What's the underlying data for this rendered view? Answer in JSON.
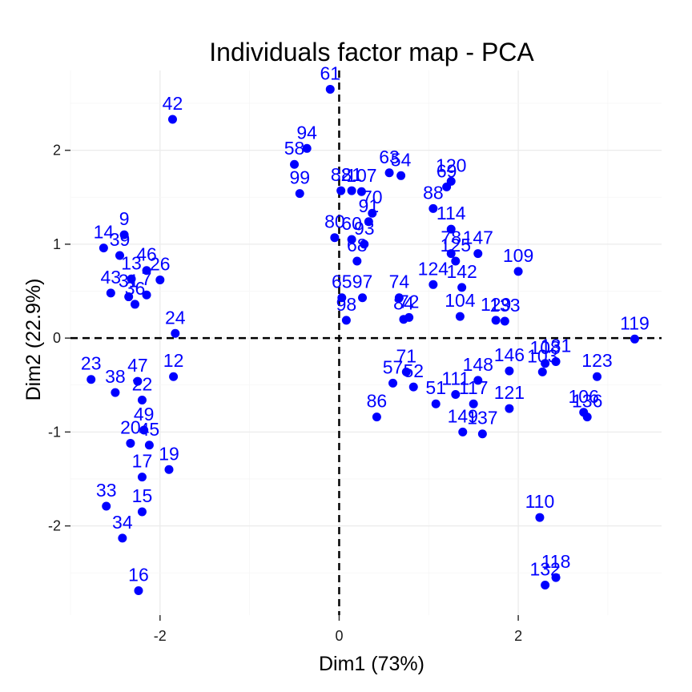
{
  "chart_data": {
    "type": "scatter",
    "title": "Individuals factor map - PCA",
    "xlabel": "Dim1 (73%)",
    "ylabel": "Dim2 (22.9%)",
    "xlim": [
      -3.0,
      3.6
    ],
    "ylim": [
      -2.95,
      2.85
    ],
    "x_ticks": [
      -2,
      0,
      2
    ],
    "x_tick_labels": [
      "-2",
      "0",
      "2"
    ],
    "y_ticks": [
      -2,
      -1,
      0,
      1,
      2
    ],
    "y_tick_labels": [
      "-2",
      "-1",
      "0",
      "1",
      "2"
    ],
    "grid": true,
    "reference_lines": {
      "x": 0,
      "y": 0,
      "style": "dashed"
    },
    "point_color": "#0000ff",
    "label_color": "#0000ff",
    "points": [
      {
        "label": "61",
        "x": -0.1,
        "y": 2.65
      },
      {
        "label": "42",
        "x": -1.86,
        "y": 2.33
      },
      {
        "label": "94",
        "x": -0.36,
        "y": 2.02
      },
      {
        "label": "58",
        "x": -0.5,
        "y": 1.85
      },
      {
        "label": "99",
        "x": -0.44,
        "y": 1.54
      },
      {
        "label": "54",
        "x": 0.69,
        "y": 1.73
      },
      {
        "label": "63",
        "x": 0.56,
        "y": 1.76
      },
      {
        "label": "82",
        "x": 0.02,
        "y": 1.57
      },
      {
        "label": "81",
        "x": 0.14,
        "y": 1.57
      },
      {
        "label": "70",
        "x": 0.37,
        "y": 1.33
      },
      {
        "label": "107",
        "x": 0.25,
        "y": 1.56
      },
      {
        "label": "120",
        "x": 1.25,
        "y": 1.67
      },
      {
        "label": "69",
        "x": 1.2,
        "y": 1.61
      },
      {
        "label": "88",
        "x": 1.05,
        "y": 1.38
      },
      {
        "label": "114",
        "x": 1.25,
        "y": 1.16
      },
      {
        "label": "9",
        "x": -2.4,
        "y": 1.1
      },
      {
        "label": "14",
        "x": -2.63,
        "y": 0.96
      },
      {
        "label": "39",
        "x": -2.45,
        "y": 0.88
      },
      {
        "label": "13",
        "x": -2.32,
        "y": 0.63
      },
      {
        "label": "46",
        "x": -2.15,
        "y": 0.72
      },
      {
        "label": "26",
        "x": -2.0,
        "y": 0.62
      },
      {
        "label": "43",
        "x": -2.55,
        "y": 0.48
      },
      {
        "label": "31",
        "x": -2.35,
        "y": 0.44
      },
      {
        "label": "36",
        "x": -2.28,
        "y": 0.36
      },
      {
        "label": "7",
        "x": -2.15,
        "y": 0.46
      },
      {
        "label": "24",
        "x": -1.83,
        "y": 0.05
      },
      {
        "label": "23",
        "x": -2.77,
        "y": -0.44
      },
      {
        "label": "38",
        "x": -2.5,
        "y": -0.58
      },
      {
        "label": "12",
        "x": -1.85,
        "y": -0.41
      },
      {
        "label": "47",
        "x": -2.25,
        "y": -0.46
      },
      {
        "label": "22",
        "x": -2.2,
        "y": -0.66
      },
      {
        "label": "49",
        "x": -2.18,
        "y": -0.98
      },
      {
        "label": "45",
        "x": -2.12,
        "y": -1.14
      },
      {
        "label": "20",
        "x": -2.33,
        "y": -1.12
      },
      {
        "label": "19",
        "x": -1.9,
        "y": -1.4
      },
      {
        "label": "17",
        "x": -2.2,
        "y": -1.48
      },
      {
        "label": "15",
        "x": -2.2,
        "y": -1.85
      },
      {
        "label": "33",
        "x": -2.6,
        "y": -1.79
      },
      {
        "label": "34",
        "x": -2.42,
        "y": -2.13
      },
      {
        "label": "16",
        "x": -2.24,
        "y": -2.69
      },
      {
        "label": "80",
        "x": -0.05,
        "y": 1.07
      },
      {
        "label": "60",
        "x": 0.14,
        "y": 1.05
      },
      {
        "label": "93",
        "x": 0.28,
        "y": 1.0
      },
      {
        "label": "91",
        "x": 0.33,
        "y": 1.24
      },
      {
        "label": "68",
        "x": 0.2,
        "y": 0.82
      },
      {
        "label": "86",
        "x": 0.42,
        "y": -0.84
      },
      {
        "label": "65",
        "x": 0.03,
        "y": 0.43
      },
      {
        "label": "97",
        "x": 0.26,
        "y": 0.43
      },
      {
        "label": "98",
        "x": 0.08,
        "y": 0.19
      },
      {
        "label": "74",
        "x": 0.67,
        "y": 0.43
      },
      {
        "label": "84",
        "x": 0.72,
        "y": 0.2
      },
      {
        "label": "72",
        "x": 0.78,
        "y": 0.22
      },
      {
        "label": "78",
        "x": 1.25,
        "y": 0.9
      },
      {
        "label": "147",
        "x": 1.55,
        "y": 0.9
      },
      {
        "label": "109",
        "x": 2.0,
        "y": 0.71
      },
      {
        "label": "125",
        "x": 1.3,
        "y": 0.82
      },
      {
        "label": "142",
        "x": 1.37,
        "y": 0.54
      },
      {
        "label": "124",
        "x": 1.05,
        "y": 0.57
      },
      {
        "label": "104",
        "x": 1.35,
        "y": 0.23
      },
      {
        "label": "129",
        "x": 1.75,
        "y": 0.19
      },
      {
        "label": "133",
        "x": 1.85,
        "y": 0.18
      },
      {
        "label": "119",
        "x": 3.3,
        "y": -0.01
      },
      {
        "label": "131",
        "x": 2.42,
        "y": -0.25
      },
      {
        "label": "123",
        "x": 2.88,
        "y": -0.41
      },
      {
        "label": "108",
        "x": 2.3,
        "y": -0.27
      },
      {
        "label": "103",
        "x": 2.27,
        "y": -0.36
      },
      {
        "label": "106",
        "x": 2.73,
        "y": -0.79
      },
      {
        "label": "136",
        "x": 2.77,
        "y": -0.84
      },
      {
        "label": "110",
        "x": 2.24,
        "y": -1.91
      },
      {
        "label": "118",
        "x": 2.42,
        "y": -2.55
      },
      {
        "label": "132",
        "x": 2.3,
        "y": -2.63
      },
      {
        "label": "71",
        "x": 0.75,
        "y": -0.36
      },
      {
        "label": "57",
        "x": 0.6,
        "y": -0.48
      },
      {
        "label": "52",
        "x": 0.83,
        "y": -0.52
      },
      {
        "label": "51",
        "x": 1.08,
        "y": -0.7
      },
      {
        "label": "149",
        "x": 1.38,
        "y": -1.0
      },
      {
        "label": "137",
        "x": 1.6,
        "y": -1.02
      },
      {
        "label": "111",
        "x": 1.3,
        "y": -0.6
      },
      {
        "label": "121",
        "x": 1.9,
        "y": -0.75
      },
      {
        "label": "117",
        "x": 1.5,
        "y": -0.7
      },
      {
        "label": "148",
        "x": 1.55,
        "y": -0.45
      },
      {
        "label": "146",
        "x": 1.9,
        "y": -0.35
      }
    ]
  }
}
